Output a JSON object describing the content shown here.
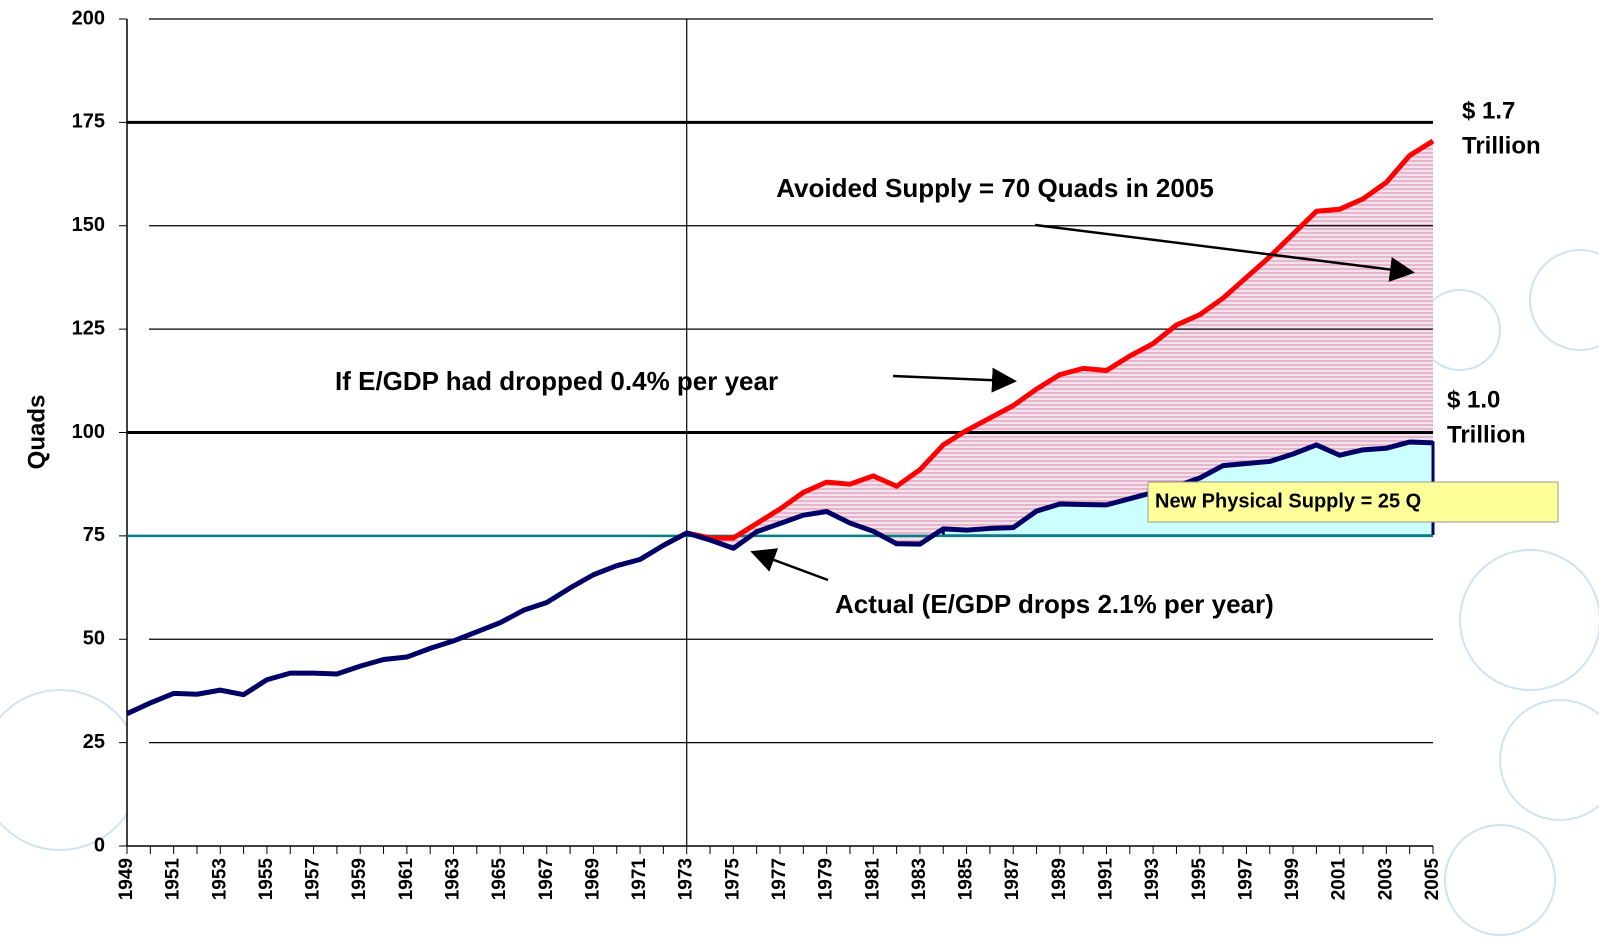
{
  "chart_data": {
    "type": "line",
    "y_label": "Quads",
    "categories": [
      "1949",
      null,
      "1951",
      null,
      "1953",
      null,
      "1955",
      null,
      "1957",
      null,
      "1959",
      null,
      "1961",
      null,
      "1963",
      null,
      "1965",
      null,
      "1967",
      null,
      "1969",
      null,
      "1971",
      null,
      "1973",
      null,
      "1975",
      null,
      "1977",
      null,
      "1979",
      null,
      "1981",
      null,
      "1983",
      null,
      "1985",
      null,
      "1987",
      null,
      "1989",
      null,
      "1991",
      null,
      "1993",
      null,
      "1995",
      null,
      "1997",
      null,
      "1999",
      null,
      "2001",
      null,
      "2003",
      null,
      "2005"
    ],
    "series": [
      {
        "color": "#ff0000",
        "values": [
          null,
          null,
          null,
          null,
          null,
          null,
          null,
          null,
          null,
          null,
          null,
          null,
          null,
          null,
          null,
          null,
          null,
          null,
          null,
          null,
          null,
          null,
          null,
          null,
          75.7,
          74.5,
          74.5,
          78,
          81.5,
          85.5,
          88,
          87.5,
          89.5,
          87,
          91,
          97,
          100.5,
          103.5,
          106.5,
          110.5,
          114,
          115.5,
          115,
          118.5,
          121.5,
          126,
          128.5,
          132.5,
          137.5,
          142.5,
          148,
          153.5,
          154,
          156.5,
          160.5,
          167,
          170.5
        ]
      },
      {
        "color": "#000066",
        "values": [
          32,
          34.6,
          36.9,
          36.7,
          37.7,
          36.6,
          40.2,
          41.8,
          41.8,
          41.6,
          43.5,
          45.1,
          45.7,
          47.8,
          49.6,
          51.8,
          54,
          57,
          58.9,
          62.4,
          65.6,
          67.8,
          69.3,
          72.7,
          75.7,
          74,
          72,
          76,
          78,
          80,
          80.9,
          78.1,
          76.1,
          73.1,
          73,
          76.7,
          76.4,
          76.8,
          77,
          81,
          82.7,
          82.6,
          82.5,
          84,
          85.5,
          87,
          89,
          92,
          92.5,
          93,
          94.8,
          97,
          94.5,
          95.8,
          96.2,
          97.7,
          97.5
        ]
      }
    ],
    "baseline": 75,
    "baseline_color": "#008080",
    "marker_year_index": 24,
    "ylim": [
      0,
      200
    ],
    "yticks": [
      0,
      25,
      50,
      75,
      100,
      125,
      150,
      175,
      200
    ],
    "bold_lines": [
      100,
      175
    ],
    "annotations": [
      "Avoided Supply = 70 Quads in 2005",
      "If E/GDP had dropped 0.4% per year",
      "Actual (E/GDP drops 2.1% per year)",
      "New Physical Supply = 25 Q"
    ],
    "right_labels": [
      [
        "$ 1.7",
        "Trillion"
      ],
      [
        "$ 1.0",
        "Trillion"
      ]
    ]
  }
}
